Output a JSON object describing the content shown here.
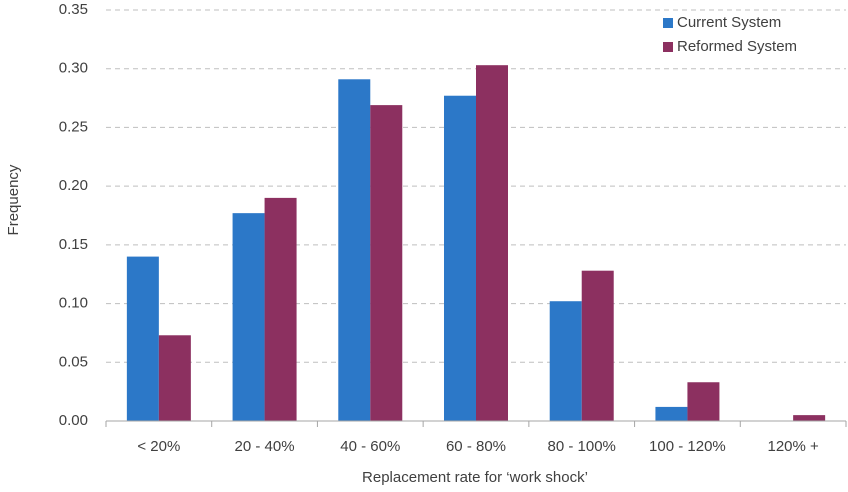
{
  "chart_data": {
    "type": "bar",
    "x_label": "Replacement rate for ‘work shock’",
    "y_label": "Frequency",
    "categories": [
      "< 20%",
      "20 - 40%",
      "40 - 60%",
      "60 - 80%",
      "80 - 100%",
      "100 - 120%",
      "120% +"
    ],
    "series": [
      {
        "name": "Current System",
        "color": "#2c78c8",
        "values": [
          0.14,
          0.177,
          0.291,
          0.277,
          0.102,
          0.012,
          0
        ]
      },
      {
        "name": "Reformed System",
        "color": "#8c3060",
        "values": [
          0.073,
          0.19,
          0.269,
          0.303,
          0.128,
          0.033,
          0.005
        ]
      }
    ],
    "ylim": [
      0,
      0.35
    ],
    "yticks": [
      {
        "value": 0,
        "label": "0.00"
      },
      0.05,
      {
        "value": 0.1,
        "label": "0.10"
      },
      0.15,
      {
        "value": 0.2,
        "label": "0.20"
      },
      0.25,
      {
        "value": 0.3,
        "label": "0.30"
      },
      0.35
    ],
    "grid": true,
    "legend": "top-right"
  }
}
